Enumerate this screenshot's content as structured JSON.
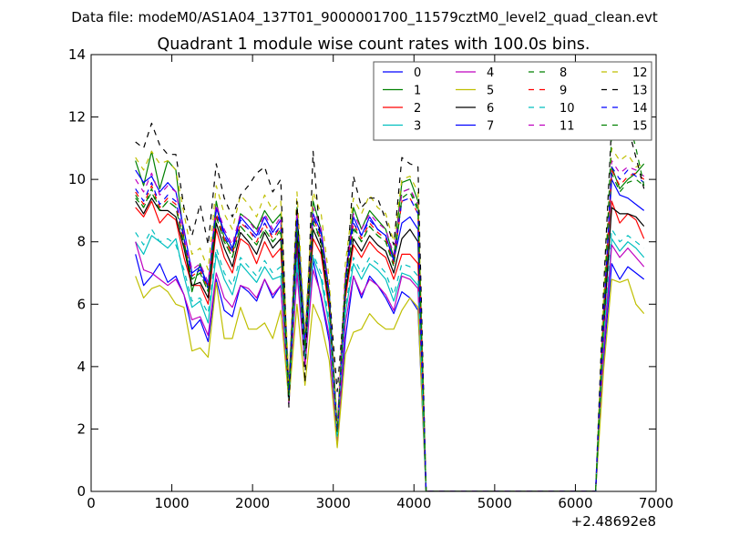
{
  "header": {
    "suptitle": "Data file: modeM0/AS1A04_137T01_9000001700_11579cztM0_level2_quad_clean.evt"
  },
  "chart_data": {
    "type": "line",
    "title": "Quadrant 1 module wise count rates with 100.0s bins.",
    "xlabel": "",
    "ylabel": "",
    "x_offset_label": "+2.48692e8",
    "xlim": [
      0,
      7000
    ],
    "ylim": [
      0,
      14
    ],
    "xticks": [
      0,
      1000,
      2000,
      3000,
      4000,
      5000,
      6000,
      7000
    ],
    "yticks": [
      0,
      2,
      4,
      6,
      8,
      10,
      12,
      14
    ],
    "grid": false,
    "legend_position": "top-right",
    "legend_columns": 4,
    "x": [
      550,
      650,
      750,
      850,
      950,
      1050,
      1150,
      1250,
      1350,
      1450,
      1550,
      1650,
      1750,
      1850,
      1950,
      2050,
      2150,
      2250,
      2350,
      2450,
      2550,
      2650,
      2750,
      2850,
      2950,
      3050,
      3150,
      3250,
      3350,
      3450,
      3550,
      3650,
      3750,
      3850,
      3950,
      4050,
      4150,
      4250,
      4350,
      4450,
      4550,
      4650,
      4750,
      4850,
      4950,
      5050,
      5150,
      5250,
      5350,
      5450,
      5550,
      5650,
      5750,
      5850,
      5950,
      6050,
      6150,
      6250,
      6350,
      6450,
      6550,
      6650,
      6750,
      6850
    ],
    "series": [
      {
        "name": "0",
        "color": "#0000ff",
        "dash": "solid",
        "values": [
          7.6,
          6.6,
          6.9,
          7.3,
          6.7,
          6.9,
          6.3,
          5.2,
          5.5,
          4.8,
          6.8,
          5.8,
          5.6,
          6.6,
          6.4,
          6.1,
          6.8,
          6.2,
          6.6,
          2.9,
          7.8,
          4.3,
          7.4,
          6.2,
          4.8,
          1.5,
          4.9,
          6.9,
          6.2,
          6.9,
          6.6,
          6.2,
          5.7,
          6.4,
          6.2,
          5.8,
          0,
          0,
          0,
          0,
          0,
          0,
          0,
          0,
          0,
          0,
          0,
          0,
          0,
          0,
          0,
          0,
          0,
          0,
          0,
          0,
          0,
          0,
          4.2,
          7.3,
          6.8,
          7.2,
          7.0,
          6.8
        ]
      },
      {
        "name": "1",
        "color": "#008000",
        "dash": "solid",
        "values": [
          10.6,
          9.8,
          10.9,
          9.7,
          10.6,
          10.3,
          8.1,
          6.4,
          7.3,
          6.5,
          9.3,
          8.1,
          7.7,
          8.9,
          8.7,
          8.4,
          9.0,
          8.6,
          8.9,
          3.3,
          9.1,
          4.9,
          9.3,
          8.4,
          6.4,
          1.9,
          6.8,
          9.1,
          8.4,
          9.0,
          8.7,
          8.4,
          7.5,
          9.9,
          10.0,
          9.3,
          0,
          0,
          0,
          0,
          0,
          0,
          0,
          0,
          0,
          0,
          0,
          0,
          0,
          0,
          0,
          0,
          0,
          0,
          0,
          0,
          0,
          0,
          5.6,
          10.4,
          9.7,
          10.0,
          10.2,
          10.5
        ]
      },
      {
        "name": "2",
        "color": "#ff0000",
        "dash": "solid",
        "values": [
          9.1,
          8.8,
          9.3,
          8.6,
          8.9,
          8.7,
          7.5,
          6.6,
          6.6,
          6.0,
          8.4,
          7.5,
          7.0,
          8.1,
          7.9,
          7.3,
          8.0,
          7.5,
          7.8,
          2.9,
          8.1,
          4.4,
          8.1,
          7.6,
          5.8,
          1.7,
          6.2,
          7.9,
          7.5,
          8.0,
          7.7,
          7.5,
          6.8,
          7.6,
          7.6,
          7.3,
          0,
          0,
          0,
          0,
          0,
          0,
          0,
          0,
          0,
          0,
          0,
          0,
          0,
          0,
          0,
          0,
          0,
          0,
          0,
          0,
          0,
          0,
          5.1,
          9.3,
          8.6,
          8.9,
          8.7,
          8.1
        ]
      },
      {
        "name": "3",
        "color": "#00bfbf",
        "dash": "solid",
        "values": [
          8.0,
          7.6,
          8.2,
          8.0,
          7.8,
          8.1,
          6.9,
          5.9,
          6.1,
          5.4,
          7.6,
          6.8,
          6.3,
          7.3,
          7.0,
          6.7,
          7.2,
          6.8,
          6.9,
          2.8,
          7.3,
          4.2,
          7.5,
          6.8,
          5.3,
          1.6,
          5.7,
          7.3,
          6.8,
          7.3,
          7.1,
          6.8,
          6.1,
          7.0,
          6.9,
          6.6,
          0,
          0,
          0,
          0,
          0,
          0,
          0,
          0,
          0,
          0,
          0,
          0,
          0,
          0,
          0,
          0,
          0,
          0,
          0,
          0,
          0,
          0,
          4.7,
          8.1,
          7.7,
          8.0,
          7.8,
          7.5
        ]
      },
      {
        "name": "4",
        "color": "#bf00bf",
        "dash": "solid",
        "values": [
          8.0,
          7.1,
          7.0,
          6.8,
          6.6,
          6.8,
          6.3,
          5.5,
          5.6,
          5.0,
          7.0,
          6.2,
          5.9,
          6.6,
          6.5,
          6.2,
          6.8,
          6.3,
          6.6,
          2.8,
          7.0,
          4.0,
          7.1,
          6.3,
          5.0,
          1.5,
          5.4,
          6.9,
          6.3,
          6.8,
          6.6,
          6.3,
          5.8,
          6.9,
          6.8,
          6.5,
          0,
          0,
          0,
          0,
          0,
          0,
          0,
          0,
          0,
          0,
          0,
          0,
          0,
          0,
          0,
          0,
          0,
          0,
          0,
          0,
          0,
          0,
          4.5,
          7.9,
          7.5,
          7.8,
          7.5,
          7.2
        ]
      },
      {
        "name": "5",
        "color": "#bfbf00",
        "dash": "solid",
        "values": [
          6.9,
          6.2,
          6.5,
          6.6,
          6.4,
          6.0,
          5.9,
          4.5,
          4.6,
          4.3,
          6.7,
          4.9,
          4.9,
          5.9,
          5.2,
          5.2,
          5.4,
          4.9,
          5.8,
          2.9,
          6.0,
          3.4,
          6.0,
          5.4,
          4.2,
          1.4,
          4.4,
          5.1,
          5.2,
          5.7,
          5.4,
          5.2,
          5.2,
          5.8,
          6.2,
          5.9,
          0,
          0,
          0,
          0,
          0,
          0,
          0,
          0,
          0,
          0,
          0,
          0,
          0,
          0,
          0,
          0,
          0,
          0,
          0,
          0,
          0,
          0,
          3.9,
          6.8,
          6.7,
          6.8,
          6.0,
          5.7
        ]
      },
      {
        "name": "6",
        "color": "#000000",
        "dash": "solid",
        "values": [
          9.3,
          8.9,
          9.4,
          9.0,
          9.0,
          8.8,
          7.8,
          6.6,
          6.7,
          6.2,
          8.6,
          7.8,
          7.2,
          8.3,
          8.0,
          7.6,
          8.3,
          7.8,
          8.1,
          3.0,
          8.3,
          4.5,
          8.4,
          7.8,
          6.0,
          1.8,
          6.4,
          8.1,
          7.7,
          8.2,
          7.9,
          7.7,
          7.0,
          8.1,
          8.4,
          8.0,
          0,
          0,
          0,
          0,
          0,
          0,
          0,
          0,
          0,
          0,
          0,
          0,
          0,
          0,
          0,
          0,
          0,
          0,
          0,
          0,
          0,
          0,
          5.3,
          9.1,
          8.9,
          8.9,
          8.8,
          8.5
        ]
      },
      {
        "name": "7",
        "color": "#0000ff",
        "dash": "solid",
        "values": [
          10.3,
          9.9,
          10.1,
          9.6,
          9.9,
          9.6,
          8.4,
          7.0,
          7.2,
          6.6,
          9.1,
          8.3,
          7.8,
          8.8,
          8.5,
          8.2,
          8.8,
          8.3,
          8.7,
          3.1,
          8.9,
          4.7,
          8.9,
          8.3,
          6.3,
          1.9,
          6.8,
          8.8,
          8.2,
          8.8,
          8.4,
          8.2,
          7.4,
          8.6,
          8.8,
          8.4,
          0,
          0,
          0,
          0,
          0,
          0,
          0,
          0,
          0,
          0,
          0,
          0,
          0,
          0,
          0,
          0,
          0,
          0,
          0,
          0,
          0,
          0,
          5.8,
          10.0,
          9.5,
          9.4,
          9.2,
          9.0
        ]
      },
      {
        "name": "8",
        "color": "#008000",
        "dash": "dashed",
        "values": [
          9.4,
          9.1,
          9.6,
          9.0,
          9.3,
          9.1,
          7.9,
          6.8,
          7.0,
          6.4,
          8.8,
          8.0,
          7.5,
          8.5,
          8.2,
          7.9,
          8.4,
          8.0,
          8.4,
          3.2,
          8.6,
          4.6,
          8.7,
          8.0,
          6.2,
          1.9,
          6.6,
          8.5,
          8.0,
          8.5,
          8.2,
          8.0,
          7.3,
          9.6,
          9.7,
          9.1,
          0,
          0,
          0,
          0,
          0,
          0,
          0,
          0,
          0,
          0,
          0,
          0,
          0,
          0,
          0,
          0,
          0,
          0,
          0,
          0,
          0,
          0,
          5.5,
          10.2,
          9.6,
          9.9,
          10.0,
          9.8
        ]
      },
      {
        "name": "9",
        "color": "#ff0000",
        "dash": "dashed",
        "values": [
          9.6,
          9.2,
          9.8,
          9.1,
          9.4,
          9.2,
          8.0,
          6.9,
          7.1,
          6.5,
          8.9,
          8.1,
          7.6,
          8.6,
          8.4,
          8.0,
          8.6,
          8.1,
          8.5,
          3.2,
          8.7,
          4.6,
          8.8,
          8.1,
          6.2,
          1.9,
          6.7,
          8.6,
          8.1,
          8.6,
          8.3,
          8.1,
          7.3,
          9.3,
          9.4,
          8.9,
          0,
          0,
          0,
          0,
          0,
          0,
          0,
          0,
          0,
          0,
          0,
          0,
          0,
          0,
          0,
          0,
          0,
          0,
          0,
          0,
          0,
          0,
          5.5,
          10.3,
          9.8,
          10.1,
          10.2,
          10.0
        ]
      },
      {
        "name": "10",
        "color": "#00bfbf",
        "dash": "dashed",
        "values": [
          8.3,
          7.9,
          8.4,
          8.0,
          8.1,
          7.9,
          7.1,
          6.1,
          6.2,
          5.7,
          7.8,
          7.0,
          6.6,
          7.5,
          7.2,
          6.9,
          7.4,
          7.0,
          7.2,
          2.9,
          7.5,
          4.3,
          7.6,
          7.0,
          5.5,
          1.7,
          5.9,
          7.5,
          7.0,
          7.5,
          7.3,
          7.0,
          6.3,
          7.3,
          7.2,
          6.9,
          0,
          0,
          0,
          0,
          0,
          0,
          0,
          0,
          0,
          0,
          0,
          0,
          0,
          0,
          0,
          0,
          0,
          0,
          0,
          0,
          0,
          0,
          4.9,
          8.4,
          8.0,
          8.2,
          8.0,
          7.8
        ]
      },
      {
        "name": "11",
        "color": "#bf00bf",
        "dash": "dashed",
        "values": [
          10.0,
          9.6,
          10.2,
          9.5,
          9.8,
          9.6,
          8.3,
          7.1,
          7.3,
          6.7,
          9.2,
          8.4,
          7.9,
          8.9,
          8.7,
          8.3,
          8.9,
          8.4,
          8.8,
          3.3,
          9.0,
          4.8,
          9.1,
          8.4,
          6.4,
          2.0,
          6.9,
          8.9,
          8.4,
          8.9,
          8.6,
          8.4,
          7.6,
          9.6,
          9.7,
          9.2,
          0,
          0,
          0,
          0,
          0,
          0,
          0,
          0,
          0,
          0,
          0,
          0,
          0,
          0,
          0,
          0,
          0,
          0,
          0,
          0,
          0,
          0,
          5.8,
          10.6,
          10.2,
          10.4,
          10.3,
          10.1
        ]
      },
      {
        "name": "12",
        "color": "#bfbf00",
        "dash": "dashed",
        "values": [
          10.7,
          10.3,
          10.9,
          10.5,
          10.6,
          10.3,
          8.9,
          7.6,
          7.8,
          7.1,
          9.8,
          8.9,
          8.4,
          9.5,
          9.2,
          8.8,
          9.5,
          9.0,
          9.3,
          3.5,
          9.6,
          5.1,
          9.6,
          8.9,
          6.8,
          2.1,
          7.3,
          9.4,
          8.9,
          9.5,
          9.1,
          8.9,
          8.0,
          10.0,
          10.1,
          9.6,
          0,
          0,
          0,
          0,
          0,
          0,
          0,
          0,
          0,
          0,
          0,
          0,
          0,
          0,
          0,
          0,
          0,
          0,
          0,
          0,
          0,
          0,
          6.2,
          11.0,
          10.6,
          10.8,
          10.4,
          10.5
        ]
      },
      {
        "name": "13",
        "color": "#000000",
        "dash": "dashed",
        "values": [
          11.2,
          11.0,
          11.8,
          11.1,
          10.8,
          10.8,
          9.1,
          8.2,
          9.2,
          7.9,
          10.5,
          9.4,
          8.8,
          9.5,
          9.8,
          10.2,
          10.4,
          9.6,
          10.0,
          2.7,
          9.3,
          3.5,
          10.9,
          7.7,
          6.4,
          3.2,
          6.5,
          10.1,
          9.1,
          9.4,
          9.4,
          8.7,
          7.9,
          10.7,
          10.5,
          10.4,
          0,
          0,
          0,
          0,
          0,
          0,
          0,
          0,
          0,
          0,
          0,
          0,
          0,
          0,
          0,
          0,
          0,
          0,
          0,
          0,
          0,
          0,
          6.5,
          11.8,
          12.1,
          11.7,
          10.7,
          9.7
        ]
      },
      {
        "name": "14",
        "color": "#0000ff",
        "dash": "dashed",
        "values": [
          9.7,
          9.3,
          9.9,
          9.2,
          9.5,
          9.3,
          8.1,
          6.9,
          7.1,
          6.5,
          9.0,
          8.2,
          7.7,
          8.7,
          8.4,
          8.1,
          8.6,
          8.2,
          8.5,
          3.2,
          8.7,
          4.7,
          8.8,
          8.2,
          6.3,
          1.9,
          6.7,
          8.6,
          8.2,
          8.7,
          8.4,
          8.2,
          7.4,
          9.3,
          9.4,
          8.9,
          0,
          0,
          0,
          0,
          0,
          0,
          0,
          0,
          0,
          0,
          0,
          0,
          0,
          0,
          0,
          0,
          0,
          0,
          0,
          0,
          0,
          0,
          5.6,
          10.4,
          10.0,
          10.3,
          10.1,
          9.9
        ]
      },
      {
        "name": "15",
        "color": "#008000",
        "dash": "dashed",
        "values": [
          9.5,
          9.1,
          9.7,
          9.0,
          9.3,
          9.1,
          7.9,
          6.8,
          7.0,
          6.4,
          8.8,
          8.0,
          7.5,
          8.5,
          8.2,
          7.9,
          8.4,
          8.0,
          8.3,
          3.1,
          8.5,
          4.6,
          8.6,
          8.0,
          6.1,
          1.9,
          6.6,
          8.4,
          8.0,
          8.5,
          8.2,
          8.0,
          7.2,
          9.4,
          9.6,
          9.0,
          0,
          0,
          0,
          0,
          0,
          0,
          0,
          0,
          0,
          0,
          0,
          0,
          0,
          0,
          0,
          0,
          0,
          0,
          0,
          0,
          0,
          0,
          5.4,
          11.5,
          11.9,
          12.0,
          11.0,
          9.8
        ]
      }
    ]
  }
}
